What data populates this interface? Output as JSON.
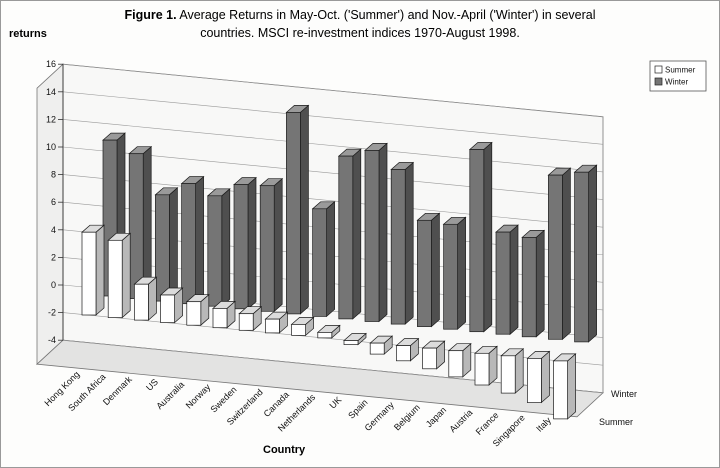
{
  "figure": {
    "title_bold": "Figure 1.",
    "title_rest_line1": " Average Returns in May-Oct. ('Summer') and Nov.-April ('Winter') in several",
    "title_line2": "countries. MSCI re-investment indices 1970-August 1998."
  },
  "chart_data": {
    "type": "bar",
    "subtype": "3d-column",
    "title": "Average Returns in May-Oct. ('Summer') and Nov.-April ('Winter') in several countries. MSCI re-investment indices 1970-August 1998.",
    "ylabel": "returns",
    "xlabel": "Country",
    "ylim": [
      -4,
      16
    ],
    "ytick_step": 2,
    "grid": true,
    "legend_position": "top-right",
    "depth_axis_labels": [
      "Winter",
      "Summer"
    ],
    "categories": [
      "Hong Kong",
      "South Africa",
      "Denmark",
      "US",
      "Australia",
      "Norway",
      "Sweden",
      "Switzerland",
      "Canada",
      "Netherlands",
      "UK",
      "Spain",
      "Germany",
      "Belgium",
      "Japan",
      "Austria",
      "France",
      "Singapore",
      "Italy"
    ],
    "series": [
      {
        "name": "Summer",
        "color": "#ffffff",
        "values": [
          6.0,
          5.6,
          2.6,
          2.0,
          1.7,
          1.4,
          1.2,
          1.0,
          0.8,
          0.4,
          -0.3,
          -0.8,
          -1.1,
          -1.5,
          -1.9,
          -2.3,
          -2.7,
          -3.2,
          -4.2
        ]
      },
      {
        "name": "Winter",
        "color": "#757575",
        "values": [
          11.3,
          10.5,
          7.7,
          8.7,
          8.0,
          9.0,
          9.1,
          14.6,
          7.8,
          11.8,
          12.4,
          11.2,
          7.7,
          7.6,
          13.2,
          7.4,
          7.2,
          11.9,
          12.3
        ]
      }
    ]
  }
}
